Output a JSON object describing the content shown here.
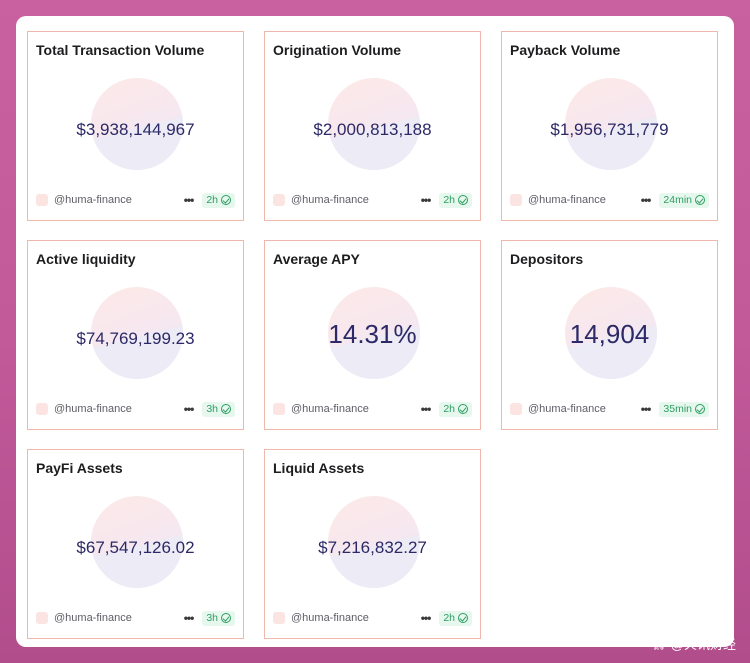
{
  "cards": [
    {
      "title": "Total Transaction Volume",
      "value": "$3,938,144,967",
      "handle": "@huma-finance",
      "time": "2h"
    },
    {
      "title": "Origination Volume",
      "value": "$2,000,813,188",
      "handle": "@huma-finance",
      "time": "2h"
    },
    {
      "title": "Payback Volume",
      "value": "$1,956,731,779",
      "handle": "@huma-finance",
      "time": "24min"
    },
    {
      "title": "Active liquidity",
      "value": "$74,769,199.23",
      "handle": "@huma-finance",
      "time": "3h"
    },
    {
      "title": "Average APY",
      "value": "14.31%",
      "handle": "@huma-finance",
      "time": "2h"
    },
    {
      "title": "Depositors",
      "value": "14,904",
      "handle": "@huma-finance",
      "time": "35min"
    },
    {
      "title": "PayFi Assets",
      "value": "$67,547,126.02",
      "handle": "@huma-finance",
      "time": "3h"
    },
    {
      "title": "Liquid Assets",
      "value": "$7,216,832.27",
      "handle": "@huma-finance",
      "time": "2h"
    }
  ],
  "footer_menu_icon": "more-dots-icon",
  "verified_icon": "check-circle-icon",
  "watermark": {
    "text": "@火讯财经",
    "icon": "chain-link-icon"
  },
  "colors": {
    "card_border": "#f0b7ad",
    "metric": "#2c2966",
    "badge_bg": "#e6f7ee",
    "badge_fg": "#2f9e62"
  }
}
